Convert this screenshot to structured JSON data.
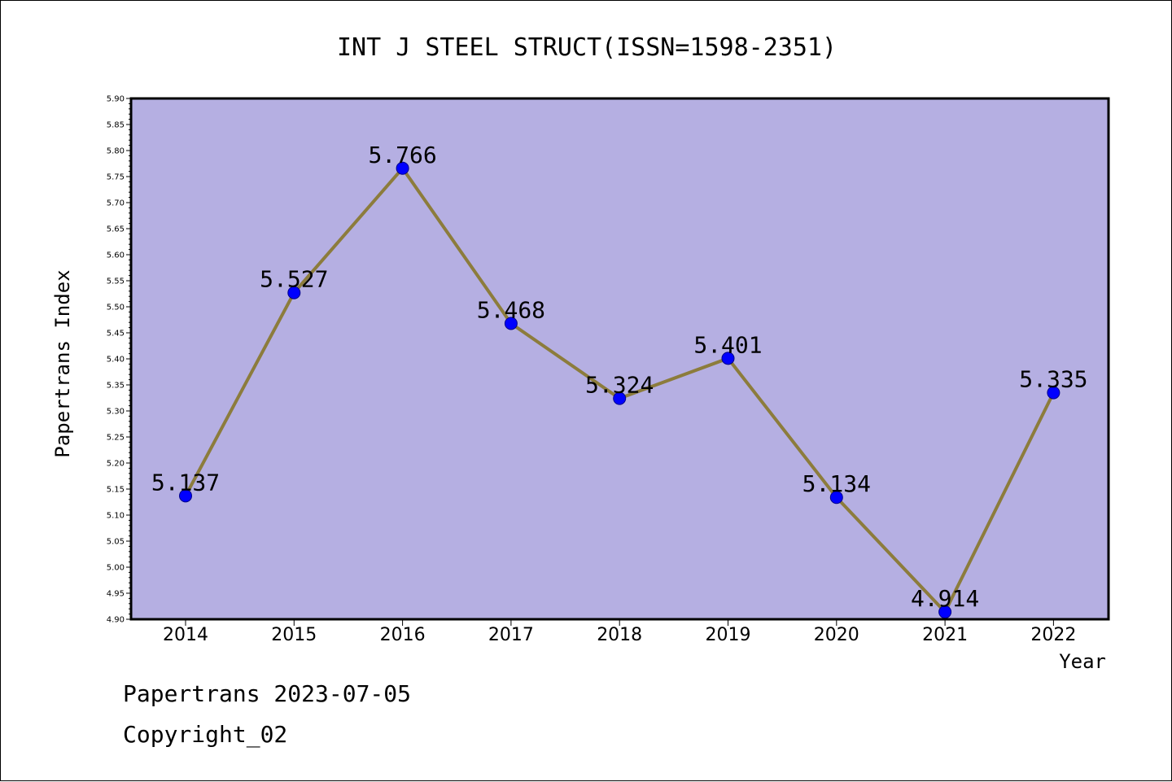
{
  "chart_data": {
    "type": "line",
    "title": "INT J STEEL STRUCT(ISSN=1598-2351)",
    "xlabel": "Year",
    "ylabel": "Papertrans Index",
    "categories": [
      "2014",
      "2015",
      "2016",
      "2017",
      "2018",
      "2019",
      "2020",
      "2021",
      "2022"
    ],
    "values": [
      5.137,
      5.527,
      5.766,
      5.468,
      5.324,
      5.401,
      5.134,
      4.914,
      5.335
    ],
    "data_labels": [
      "5.137",
      "5.527",
      "5.766",
      "5.468",
      "5.324",
      "5.401",
      "5.134",
      "4.914",
      "5.335"
    ],
    "ylim": [
      4.9,
      5.9
    ],
    "y_ticks": [
      "4.90",
      "4.95",
      "5.00",
      "5.05",
      "5.10",
      "5.15",
      "5.20",
      "5.25",
      "5.30",
      "5.35",
      "5.40",
      "5.45",
      "5.50",
      "5.55",
      "5.60",
      "5.65",
      "5.70",
      "5.75",
      "5.80",
      "5.85",
      "5.90"
    ],
    "grid": false,
    "colors": {
      "plot_background": "#b5afe2",
      "line": "#8c7c3c",
      "marker": "#0000ff"
    }
  },
  "footer": {
    "line1": "Papertrans 2023-07-05",
    "line2": "Copyright_02"
  }
}
